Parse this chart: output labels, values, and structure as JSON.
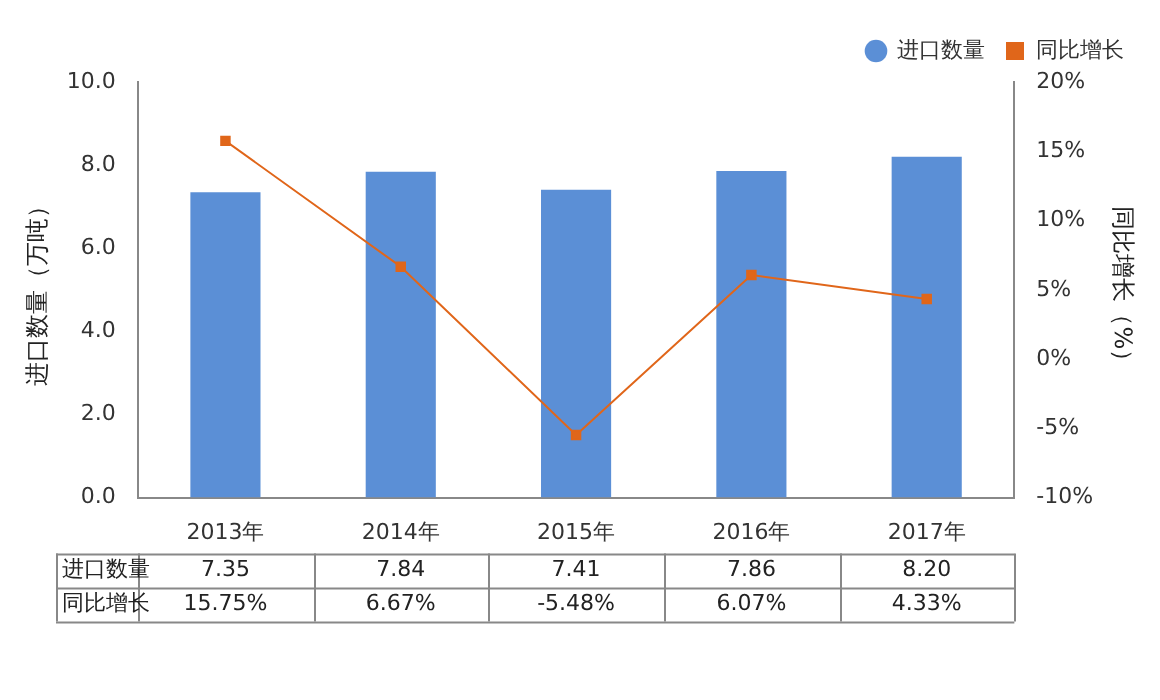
{
  "chart_data": {
    "type": "bar",
    "categories": [
      "2013年",
      "2014年",
      "2015年",
      "2016年",
      "2017年"
    ],
    "series": [
      {
        "name": "进口数量",
        "color": "#5b8fd6",
        "values": [
          7.35,
          7.84,
          7.41,
          7.86,
          8.2
        ],
        "value_labels": [
          "7.35",
          "7.84",
          "7.41",
          "7.86",
          "8.20"
        ]
      },
      {
        "name": "同比增长",
        "type": "line",
        "axis": "y2",
        "color": "#e0661a",
        "values": [
          15.75,
          6.67,
          -5.48,
          6.07,
          4.33
        ],
        "value_labels": [
          "15.75%",
          "6.67%",
          "-5.48%",
          "6.07%",
          "4.33%"
        ]
      }
    ],
    "ylabel": "进口数量（万吨）",
    "y2label": "同比增长（%）",
    "ylim": [
      0,
      10
    ],
    "yticks": [
      {
        "value": 0,
        "label": "0.0"
      },
      {
        "value": 2,
        "label": "2.0"
      },
      {
        "value": 4,
        "label": "4.0"
      },
      {
        "value": 6,
        "label": "6.0"
      },
      {
        "value": 8,
        "label": "8.0"
      },
      {
        "value": 10,
        "label": "10.0"
      }
    ],
    "y2lim": [
      -10,
      20
    ],
    "y2ticks": [
      {
        "value": -10,
        "label": "-10%"
      },
      {
        "value": -5,
        "label": "-5%"
      },
      {
        "value": 0,
        "label": "0%"
      },
      {
        "value": 5,
        "label": "5%"
      },
      {
        "value": 10,
        "label": "10%"
      },
      {
        "value": 15,
        "label": "15%"
      },
      {
        "value": 20,
        "label": "20%"
      }
    ],
    "legend": "top right",
    "marker": "square",
    "line_style": "solid",
    "data_labels": true
  }
}
